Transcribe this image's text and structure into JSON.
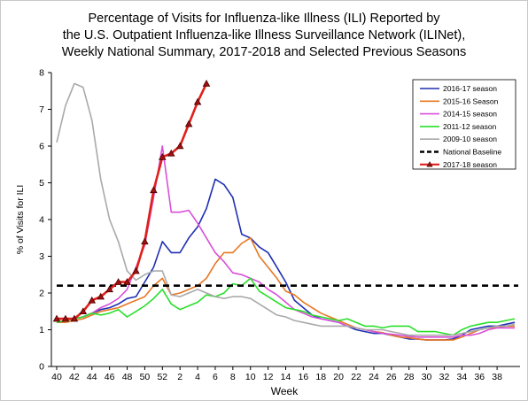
{
  "chart_data": {
    "type": "line",
    "title_lines": [
      "Percentage of Visits for Influenza-like Illness (ILI) Reported by",
      "the U.S. Outpatient Influenza-like Illness Surveillance Network (ILINet),",
      "Weekly National Summary, 2017-2018 and Selected Previous Seasons"
    ],
    "xlabel": "Week",
    "ylabel": "% of Visits for ILI",
    "ylim": [
      0,
      8
    ],
    "yticks": [
      0,
      1,
      2,
      3,
      4,
      5,
      6,
      7,
      8
    ],
    "x_week_index_range": [
      0,
      52
    ],
    "xticks": [
      {
        "pos": 0,
        "label": "40"
      },
      {
        "pos": 2,
        "label": "42"
      },
      {
        "pos": 4,
        "label": "44"
      },
      {
        "pos": 6,
        "label": "46"
      },
      {
        "pos": 8,
        "label": "48"
      },
      {
        "pos": 10,
        "label": "50"
      },
      {
        "pos": 12,
        "label": "52"
      },
      {
        "pos": 14,
        "label": "2"
      },
      {
        "pos": 16,
        "label": "4"
      },
      {
        "pos": 18,
        "label": "6"
      },
      {
        "pos": 20,
        "label": "8"
      },
      {
        "pos": 22,
        "label": "10"
      },
      {
        "pos": 24,
        "label": "12"
      },
      {
        "pos": 26,
        "label": "14"
      },
      {
        "pos": 28,
        "label": "16"
      },
      {
        "pos": 30,
        "label": "18"
      },
      {
        "pos": 32,
        "label": "20"
      },
      {
        "pos": 34,
        "label": "22"
      },
      {
        "pos": 36,
        "label": "24"
      },
      {
        "pos": 38,
        "label": "26"
      },
      {
        "pos": 40,
        "label": "28"
      },
      {
        "pos": 42,
        "label": "30"
      },
      {
        "pos": 44,
        "label": "32"
      },
      {
        "pos": 46,
        "label": "34"
      },
      {
        "pos": 48,
        "label": "36"
      },
      {
        "pos": 50,
        "label": "38"
      }
    ],
    "legend_position": "top-right",
    "series": [
      {
        "name": "2016-17 season",
        "color": "#1f2fb4",
        "values": [
          1.2,
          1.25,
          1.3,
          1.35,
          1.45,
          1.55,
          1.6,
          1.7,
          1.85,
          1.9,
          2.3,
          2.7,
          3.4,
          3.1,
          3.1,
          3.5,
          3.8,
          4.3,
          5.1,
          4.95,
          4.6,
          3.6,
          3.5,
          3.25,
          3.1,
          2.7,
          2.3,
          1.8,
          1.6,
          1.4,
          1.3,
          1.25,
          1.2,
          1.1,
          1.0,
          0.95,
          0.9,
          0.9,
          0.85,
          0.8,
          0.75,
          0.75,
          0.72,
          0.72,
          0.72,
          0.75,
          0.85,
          1.0,
          1.05,
          1.1,
          1.1,
          1.15,
          1.2
        ]
      },
      {
        "name": "2015-16 Season",
        "color": "#e87722",
        "values": [
          1.2,
          1.2,
          1.25,
          1.3,
          1.4,
          1.5,
          1.55,
          1.6,
          1.7,
          1.8,
          1.9,
          2.2,
          2.4,
          1.95,
          2.0,
          2.1,
          2.2,
          2.4,
          2.8,
          3.1,
          3.1,
          3.35,
          3.5,
          3.0,
          2.7,
          2.4,
          2.05,
          1.95,
          1.75,
          1.6,
          1.45,
          1.35,
          1.25,
          1.15,
          1.05,
          1.0,
          0.95,
          0.92,
          0.85,
          0.8,
          0.78,
          0.75,
          0.72,
          0.72,
          0.72,
          0.72,
          0.8,
          0.9,
          1.0,
          1.05,
          1.05,
          1.1,
          1.1
        ]
      },
      {
        "name": "2014-15 season",
        "color": "#d94fd9",
        "values": [
          1.2,
          1.25,
          1.3,
          1.35,
          1.45,
          1.6,
          1.7,
          1.85,
          2.1,
          2.7,
          3.3,
          4.6,
          6.0,
          4.2,
          4.2,
          4.25,
          3.9,
          3.5,
          3.1,
          2.85,
          2.55,
          2.5,
          2.4,
          2.3,
          2.1,
          1.95,
          1.75,
          1.55,
          1.45,
          1.35,
          1.3,
          1.25,
          1.2,
          1.1,
          1.05,
          1.0,
          0.95,
          0.9,
          0.88,
          0.85,
          0.82,
          0.8,
          0.8,
          0.8,
          0.8,
          0.8,
          0.85,
          0.85,
          0.9,
          1.0,
          1.05,
          1.05,
          1.05
        ]
      },
      {
        "name": "2011-12 season",
        "color": "#2adf2a",
        "values": [
          1.2,
          1.25,
          1.3,
          1.35,
          1.45,
          1.4,
          1.45,
          1.55,
          1.35,
          1.5,
          1.65,
          1.85,
          2.1,
          1.7,
          1.55,
          1.65,
          1.75,
          1.95,
          1.9,
          2.0,
          2.25,
          2.2,
          2.4,
          2.05,
          1.9,
          1.75,
          1.6,
          1.55,
          1.5,
          1.4,
          1.35,
          1.3,
          1.25,
          1.3,
          1.2,
          1.1,
          1.1,
          1.05,
          1.1,
          1.1,
          1.1,
          0.95,
          0.95,
          0.95,
          0.9,
          0.85,
          1.0,
          1.1,
          1.15,
          1.2,
          1.2,
          1.25,
          1.3
        ]
      },
      {
        "name": "2009-10 season",
        "color": "#a9a9a9",
        "values": [
          6.1,
          7.1,
          7.7,
          7.6,
          6.7,
          5.1,
          4.0,
          3.4,
          2.6,
          2.35,
          2.5,
          2.6,
          2.6,
          1.95,
          1.9,
          2.0,
          2.1,
          2.0,
          1.9,
          1.85,
          1.9,
          1.9,
          1.85,
          1.7,
          1.55,
          1.4,
          1.35,
          1.25,
          1.2,
          1.15,
          1.1,
          1.1,
          1.1,
          1.1,
          1.05,
          1.0,
          1.0,
          1.0,
          0.95,
          0.9,
          0.85,
          0.85,
          0.85,
          0.85,
          0.85,
          0.85,
          0.9,
          0.95,
          1.0,
          1.05,
          1.1,
          1.1,
          1.15
        ]
      },
      {
        "name": "National Baseline",
        "color": "#000000",
        "dashed": true,
        "values": [
          2.2,
          2.2
        ]
      },
      {
        "name": "2017-18 season",
        "color": "#e0201b",
        "marker_color": "#a01010",
        "marker": "triangle",
        "values": [
          1.3,
          1.3,
          1.3,
          1.5,
          1.8,
          1.9,
          2.1,
          2.3,
          2.3,
          2.6,
          3.4,
          4.8,
          5.7,
          5.8,
          6.0,
          6.6,
          7.2,
          7.7
        ]
      }
    ]
  }
}
